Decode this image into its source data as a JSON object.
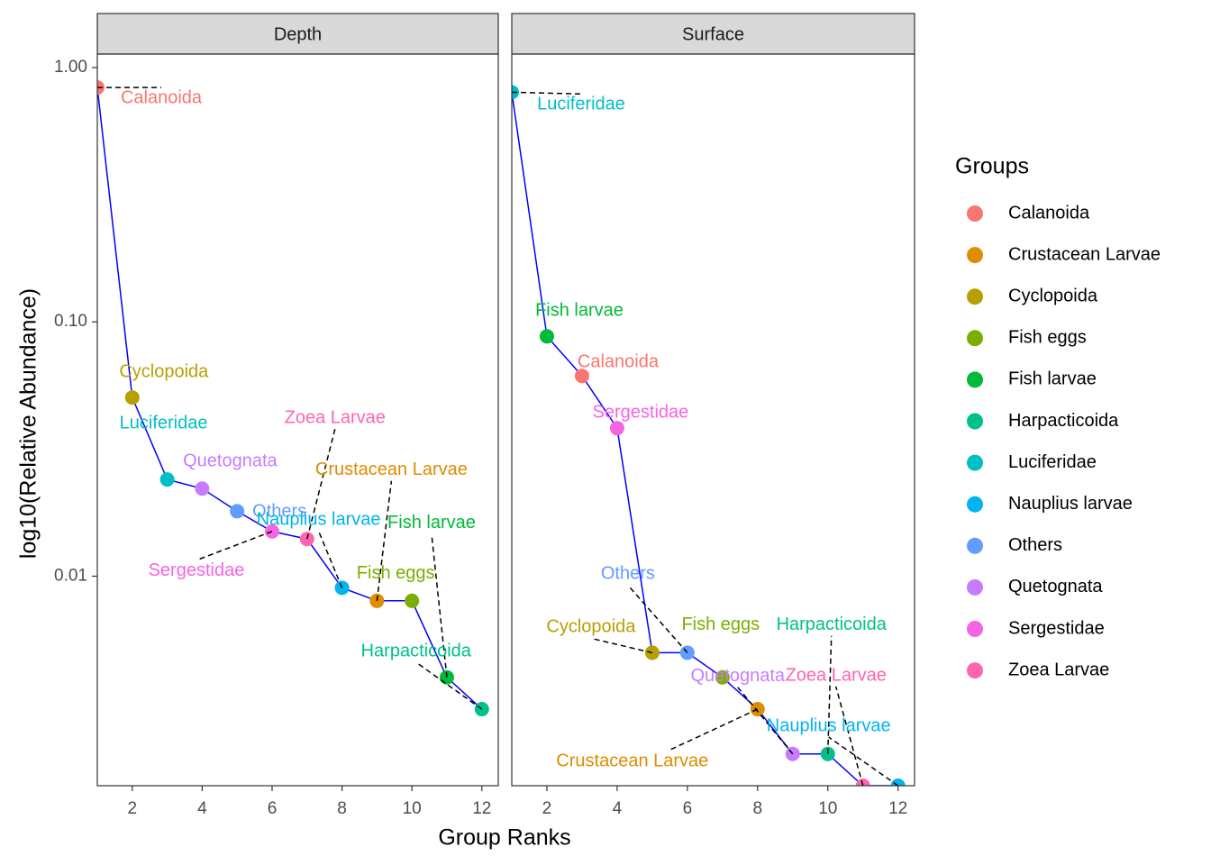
{
  "chart_data": {
    "type": "line",
    "log_scale": true,
    "x_label": "Group Ranks",
    "y_label": "log10(Relative Abundance)",
    "legend_title": "Groups",
    "line_color": "#0000ff",
    "xlim": [
      1,
      12.47
    ],
    "xticks": [
      2,
      4,
      6,
      8,
      10,
      12
    ],
    "ylim": [
      0.0015,
      1.13
    ],
    "yticks": [
      {
        "value": 1,
        "label": "1.00"
      },
      {
        "value": 0.1,
        "label": "0.10"
      },
      {
        "value": 0.01,
        "label": "0.01"
      }
    ],
    "groups": [
      {
        "name": "Calanoida",
        "color": "#F8766D"
      },
      {
        "name": "Crustacean Larvae",
        "color": "#DE8C00"
      },
      {
        "name": "Cyclopoida",
        "color": "#B79F00"
      },
      {
        "name": "Fish eggs",
        "color": "#7CAE00"
      },
      {
        "name": "Fish larvae",
        "color": "#00BA38"
      },
      {
        "name": "Harpacticoida",
        "color": "#00C08B"
      },
      {
        "name": "Luciferidae",
        "color": "#00BFC4"
      },
      {
        "name": "Nauplius larvae",
        "color": "#00B4F0"
      },
      {
        "name": "Others",
        "color": "#619CFF"
      },
      {
        "name": "Quetognata",
        "color": "#C77CFF"
      },
      {
        "name": "Sergestidae",
        "color": "#F564E3"
      },
      {
        "name": "Zoea Larvae",
        "color": "#FF64B0"
      }
    ],
    "facets": [
      {
        "title": "Depth",
        "x": [
          1,
          2,
          3,
          4,
          5,
          6,
          7,
          8,
          9,
          10,
          11,
          12
        ],
        "values": [
          0.835,
          0.0504,
          0.024,
          0.0221,
          0.018,
          0.015,
          0.014,
          0.009,
          0.008,
          0.008,
          0.004,
          0.003
        ],
        "labels": [
          "Calanoida",
          "Cyclopoida",
          "Luciferidae",
          "Quetognata",
          "Others",
          "Sergestidae",
          "Zoea Larvae",
          "Nauplius larvae",
          "Crustacean Larvae",
          "Fish eggs",
          "Fish larvae",
          "Harpacticoida"
        ]
      },
      {
        "title": "Surface",
        "x": [
          1,
          2,
          3,
          4,
          5,
          6,
          7,
          8,
          9,
          10,
          11,
          12
        ],
        "values": [
          0.8,
          0.0877,
          0.0613,
          0.0382,
          0.005,
          0.005,
          0.004,
          0.003,
          0.002,
          0.002,
          0.0015,
          0.0015
        ],
        "labels": [
          "Luciferidae",
          "Fish larvae",
          "Calanoida",
          "Sergestidae",
          "Cyclopoida",
          "Others",
          "Fish eggs",
          "Crustacean Larvae",
          "Quetognata",
          "Harpacticoida",
          "Zoea Larvae",
          "Nauplius larvae"
        ]
      }
    ]
  }
}
